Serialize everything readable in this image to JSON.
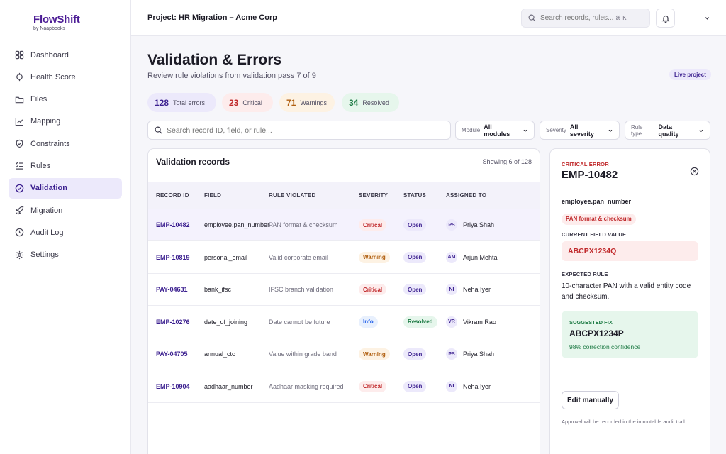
{
  "brand": {
    "name": "FlowShift",
    "sub": "by Naapbooks"
  },
  "sidebar": {
    "items": [
      {
        "label": "Dashboard",
        "icon": "grid-icon"
      },
      {
        "label": "Health Score",
        "icon": "crosshair-icon"
      },
      {
        "label": "Files",
        "icon": "folder-icon"
      },
      {
        "label": "Mapping",
        "icon": "chart-icon"
      },
      {
        "label": "Constraints",
        "icon": "shield-icon"
      },
      {
        "label": "Rules",
        "icon": "checklist-icon"
      },
      {
        "label": "Validation",
        "icon": "check-circle-icon",
        "active": true
      },
      {
        "label": "Migration",
        "icon": "rocket-icon"
      },
      {
        "label": "Audit Log",
        "icon": "clock-icon"
      },
      {
        "label": "Settings",
        "icon": "gear-icon"
      }
    ]
  },
  "header": {
    "project": "Project: HR Migration – Acme Corp",
    "search_placeholder": "Search records, rules...",
    "shortcut": "⌘ K"
  },
  "main": {
    "title": "Validation & Errors",
    "subtitle": "Review rule violations from validation pass 7 of 9",
    "badge": "Live project",
    "stats": {
      "total": {
        "value": "128",
        "label": "Total errors"
      },
      "critical": {
        "value": "23",
        "label": "Critical"
      },
      "warnings": {
        "value": "71",
        "label": "Warnings"
      },
      "resolved": {
        "value": "34",
        "label": "Resolved"
      }
    },
    "search_placeholder": "Search record ID, field, or rule...",
    "filters": {
      "module": {
        "key": "Module",
        "value": "All modules"
      },
      "severity": {
        "key": "Severity",
        "value": "All severity"
      },
      "rule_type": {
        "key": "Rule type",
        "value": "Data quality"
      }
    }
  },
  "table": {
    "title": "Validation records",
    "count": "Showing 6 of 128",
    "columns": [
      "RECORD ID",
      "FIELD",
      "RULE VIOLATED",
      "SEVERITY",
      "STATUS",
      "ASSIGNED TO"
    ],
    "rows": [
      {
        "id": "EMP-10482",
        "field": "employee.pan_number",
        "rule": "PAN format & checksum",
        "severity": "Critical",
        "status": "Open",
        "initials": "PS",
        "assignee": "Priya Shah"
      },
      {
        "id": "EMP-10819",
        "field": "personal_email",
        "rule": "Valid corporate email",
        "severity": "Warning",
        "status": "Open",
        "initials": "AM",
        "assignee": "Arjun Mehta"
      },
      {
        "id": "PAY-04631",
        "field": "bank_ifsc",
        "rule": "IFSC branch validation",
        "severity": "Critical",
        "status": "Open",
        "initials": "NI",
        "assignee": "Neha Iyer"
      },
      {
        "id": "EMP-10276",
        "field": "date_of_joining",
        "rule": "Date cannot be future",
        "severity": "Info",
        "status": "Resolved",
        "initials": "VR",
        "assignee": "Vikram Rao"
      },
      {
        "id": "PAY-04705",
        "field": "annual_ctc",
        "rule": "Value within grade band",
        "severity": "Warning",
        "status": "Open",
        "initials": "PS",
        "assignee": "Priya Shah"
      },
      {
        "id": "EMP-10904",
        "field": "aadhaar_number",
        "rule": "Aadhaar masking required",
        "severity": "Critical",
        "status": "Open",
        "initials": "NI",
        "assignee": "Neha Iyer"
      }
    ]
  },
  "detail": {
    "tag": "CRITICAL ERROR",
    "id": "EMP-10482",
    "field": "employee.pan_number",
    "rule": "PAN format & checksum",
    "current_label": "CURRENT FIELD VALUE",
    "current_value": "ABCPX1234Q",
    "expected_label": "EXPECTED RULE",
    "expected_text": "10-character PAN with a valid entity code and checksum.",
    "fix_label": "SUGGESTED FIX",
    "fix_value": "ABCPX1234P",
    "fix_confidence": "98% correction confidence",
    "edit_label": "Edit manually",
    "note": "Approval will be recorded in the immutable audit trail."
  },
  "colors": {
    "brand": "#4c1d95",
    "accent_bg": "#ece9fb",
    "critical": "#c0292b",
    "warning": "#b05f10",
    "resolved": "#1e7b45",
    "info": "#2563eb"
  }
}
